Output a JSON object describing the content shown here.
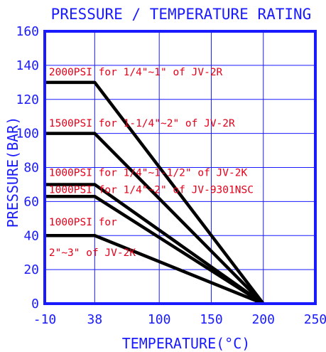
{
  "chart_data": {
    "type": "line",
    "title": "PRESSURE / TEMPERATURE RATING",
    "xlabel": "TEMPERATURE(°C)",
    "ylabel": "PRESSURE(BAR)",
    "xlim": [
      -10,
      250
    ],
    "ylim": [
      0,
      160
    ],
    "x_ticks": [
      -10,
      38,
      100,
      150,
      200,
      250
    ],
    "x_tick_labels": [
      "-10",
      "38",
      "100",
      "150",
      "200",
      "250"
    ],
    "y_ticks": [
      0,
      20,
      40,
      60,
      80,
      100,
      120,
      140,
      160
    ],
    "y_tick_labels": [
      "0",
      "20",
      "40",
      "60",
      "80",
      "100",
      "120",
      "140",
      "160"
    ],
    "grid": true,
    "series": [
      {
        "x": [
          -10,
          38,
          200
        ],
        "y": [
          130,
          130,
          0
        ]
      },
      {
        "x": [
          -10,
          38,
          200
        ],
        "y": [
          100,
          100,
          0
        ]
      },
      {
        "x": [
          -10,
          38,
          200
        ],
        "y": [
          70,
          70,
          0
        ]
      },
      {
        "x": [
          -10,
          38,
          200
        ],
        "y": [
          63,
          63,
          0
        ]
      },
      {
        "x": [
          -10,
          38,
          200
        ],
        "y": [
          40,
          40,
          0
        ]
      }
    ],
    "annotations": [
      {
        "text": "2000PSI for 1/4\"~1\" of JV-2R",
        "x": -6,
        "y": 134
      },
      {
        "text": "1500PSI for 1-1/4\"~2\" of JV-2R",
        "x": -6,
        "y": 104
      },
      {
        "text": "1000PSI for 1/4\"~1-1/2\" of JV-2K",
        "x": -6,
        "y": 75
      },
      {
        "text": "1000PSI for 1/4\"~2\" of JV-9301NSC",
        "x": -6,
        "y": 65
      },
      {
        "text": "1000PSI for",
        "x": -6,
        "y": 46
      },
      {
        "text": "2\"~3\" of JV-2K",
        "x": -6,
        "y": 28
      }
    ],
    "colors": {
      "frame": "#1a1aff",
      "lines": "#000000",
      "annotations": "#e5001a"
    }
  }
}
